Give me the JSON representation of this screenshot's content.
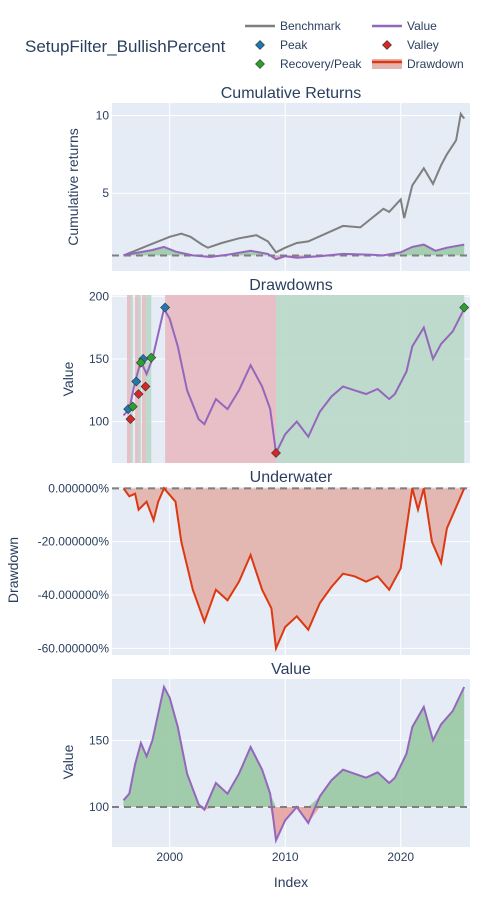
{
  "title": "SetupFilter_BullishPercent",
  "legend": [
    {
      "label": "Benchmark",
      "symbol": "line",
      "color": "#7f7f7f"
    },
    {
      "label": "Value",
      "symbol": "line",
      "color": "#9467bd"
    },
    {
      "label": "Peak",
      "symbol": "diamond",
      "color": "#1f77b4"
    },
    {
      "label": "Valley",
      "symbol": "diamond",
      "color": "#d62728"
    },
    {
      "label": "Recovery/Peak",
      "symbol": "diamond",
      "color": "#2ca02c"
    },
    {
      "label": "Drawdown",
      "symbol": "band",
      "color": "#dc3912"
    }
  ],
  "colors": {
    "plot_bg": "#e5ecf6",
    "grid": "#ffffff",
    "text": "#2a3f5f",
    "benchmark": "#7f7f7f",
    "value": "#9467bd",
    "peak": "#1f77b4",
    "valley": "#d62728",
    "recovery": "#2ca02c",
    "drawdown_line": "#dc3912",
    "drawdown_fill": "#e4b5ae",
    "active_dd_fill": "#e8b9c2",
    "recovery_fill": "#b8d8c8",
    "above_fill": "#98c9a3",
    "below_fill": "#e8a3a0",
    "baseline": "#7f7f7f"
  },
  "x_axis": {
    "label": "Index",
    "ticks": [
      2000,
      2010,
      2020
    ],
    "range": [
      1995,
      2026
    ]
  },
  "chart_data": [
    {
      "type": "line",
      "title": "Cumulative Returns",
      "ylabel": "Cumulative returns",
      "ylim": [
        0,
        10.8
      ],
      "yticks": [
        {
          "v": 5,
          "label": "5"
        },
        {
          "v": 10,
          "label": "10"
        }
      ],
      "baseline": 1,
      "series": [
        {
          "name": "Benchmark",
          "x": [
            1996.0,
            1997.0,
            1998.0,
            1999.0,
            2000.0,
            2001.0,
            2001.8,
            2002.8,
            2003.3,
            2004.5,
            2006.0,
            2007.5,
            2008.5,
            2009.2,
            2010.0,
            2011.0,
            2012.0,
            2013.5,
            2015.0,
            2016.5,
            2017.5,
            2018.5,
            2019.0,
            2020.0,
            2020.3,
            2021.0,
            2022.0,
            2022.8,
            2023.5,
            2024.0,
            2024.8,
            2025.2,
            2025.5
          ],
          "values": [
            1.0,
            1.3,
            1.6,
            1.9,
            2.2,
            2.4,
            2.2,
            1.7,
            1.5,
            1.8,
            2.1,
            2.3,
            1.9,
            1.2,
            1.5,
            1.8,
            1.9,
            2.4,
            2.9,
            2.8,
            3.4,
            4.0,
            3.8,
            4.6,
            3.4,
            5.5,
            6.6,
            5.6,
            6.8,
            7.5,
            8.4,
            10.1,
            9.8
          ]
        },
        {
          "name": "Value",
          "x": [
            1996.0,
            1997.0,
            1998.5,
            1999.5,
            2000.5,
            2002.0,
            2003.5,
            2005.0,
            2007.0,
            2008.5,
            2009.2,
            2010.0,
            2011.0,
            2013.0,
            2015.0,
            2017.5,
            2018.5,
            2020.0,
            2021.0,
            2022.0,
            2023.0,
            2024.0,
            2025.5
          ],
          "values": [
            1.0,
            1.15,
            1.35,
            1.55,
            1.25,
            1.0,
            0.9,
            1.05,
            1.3,
            1.1,
            0.75,
            0.95,
            0.85,
            0.95,
            1.1,
            1.05,
            1.0,
            1.2,
            1.55,
            1.7,
            1.3,
            1.5,
            1.7
          ]
        }
      ]
    },
    {
      "type": "line",
      "title": "Drawdowns",
      "ylabel": "Value",
      "ylim": [
        67,
        201
      ],
      "yticks": [
        {
          "v": 100,
          "label": "100"
        },
        {
          "v": 150,
          "label": "150"
        },
        {
          "v": 200,
          "label": "200"
        }
      ],
      "series": [
        {
          "name": "Value",
          "x": [
            1996.0,
            1996.5,
            1997.0,
            1997.5,
            1998.0,
            1998.5,
            1999.0,
            1999.5,
            2000.0,
            2000.7,
            2001.5,
            2002.5,
            2003.0,
            2004.0,
            2005.0,
            2006.0,
            2007.0,
            2008.0,
            2008.7,
            2009.2,
            2010.0,
            2011.0,
            2012.0,
            2013.0,
            2014.0,
            2015.0,
            2016.0,
            2017.0,
            2018.0,
            2019.0,
            2019.5,
            2020.5,
            2021.0,
            2022.0,
            2022.8,
            2023.5,
            2024.5,
            2025.5
          ],
          "values": [
            105,
            110,
            132,
            148,
            138,
            150,
            170,
            190,
            182,
            160,
            125,
            102,
            98,
            118,
            110,
            125,
            145,
            128,
            110,
            75,
            90,
            100,
            88,
            108,
            120,
            128,
            125,
            122,
            126,
            118,
            122,
            140,
            160,
            175,
            150,
            162,
            172,
            190
          ]
        }
      ],
      "markers": {
        "peaks": {
          "x": [
            1996.4,
            1997.1,
            1997.7,
            1999.6
          ],
          "values": [
            110,
            132,
            150,
            191
          ]
        },
        "valleys": {
          "x": [
            1996.6,
            1997.3,
            1997.9,
            2009.2
          ],
          "values": [
            102,
            122,
            128,
            75
          ]
        },
        "recoveries": {
          "x": [
            1996.8,
            1997.5,
            1998.4,
            2025.5
          ],
          "values": [
            112,
            147,
            151,
            191
          ]
        }
      },
      "drawdown_ranges": [
        {
          "start": 1996.3,
          "valley": 1996.6,
          "end": 1996.8
        },
        {
          "start": 1997.0,
          "valley": 1997.3,
          "end": 1997.5
        },
        {
          "start": 1997.6,
          "valley": 1997.9,
          "end": 1998.4
        },
        {
          "start": 1999.6,
          "valley": 2009.2,
          "end": 2025.5
        }
      ]
    },
    {
      "type": "area",
      "title": "Underwater",
      "ylabel": "Drawdown",
      "ylim": [
        -0.625,
        0.005
      ],
      "yticks": [
        {
          "v": 0,
          "label": "0.000000%"
        },
        {
          "v": -0.2,
          "label": "-20.000000%"
        },
        {
          "v": -0.4,
          "label": "-40.000000%"
        },
        {
          "v": -0.6,
          "label": "-60.000000%"
        }
      ],
      "baseline": 0,
      "series": [
        {
          "name": "Drawdown",
          "x": [
            1996.0,
            1996.5,
            1997.0,
            1997.3,
            1998.0,
            1998.6,
            1999.0,
            1999.5,
            2000.5,
            2001.0,
            2002.0,
            2003.0,
            2004.0,
            2005.0,
            2006.0,
            2007.0,
            2008.0,
            2008.8,
            2009.2,
            2010.0,
            2011.0,
            2012.0,
            2013.0,
            2014.0,
            2015.0,
            2016.0,
            2017.0,
            2018.0,
            2019.0,
            2020.0,
            2020.5,
            2021.0,
            2021.5,
            2022.0,
            2022.7,
            2023.5,
            2024.0,
            2025.0,
            2025.5
          ],
          "values": [
            0.0,
            -0.03,
            -0.02,
            -0.08,
            -0.05,
            -0.12,
            -0.05,
            0.0,
            -0.05,
            -0.2,
            -0.38,
            -0.5,
            -0.38,
            -0.42,
            -0.35,
            -0.25,
            -0.38,
            -0.45,
            -0.6,
            -0.52,
            -0.48,
            -0.53,
            -0.43,
            -0.37,
            -0.32,
            -0.33,
            -0.35,
            -0.33,
            -0.38,
            -0.3,
            -0.15,
            0.0,
            -0.08,
            0.0,
            -0.2,
            -0.28,
            -0.15,
            -0.05,
            0.0
          ]
        }
      ]
    },
    {
      "type": "area",
      "title": "Value",
      "ylabel": "Value",
      "ylim": [
        70,
        196
      ],
      "yticks": [
        {
          "v": 100,
          "label": "100"
        },
        {
          "v": 150,
          "label": "150"
        }
      ],
      "baseline": 100,
      "series": [
        {
          "name": "Value",
          "x": [
            1996.0,
            1996.5,
            1997.0,
            1997.5,
            1998.0,
            1998.5,
            1999.0,
            1999.5,
            2000.0,
            2000.7,
            2001.5,
            2002.5,
            2003.0,
            2004.0,
            2005.0,
            2006.0,
            2007.0,
            2008.0,
            2008.7,
            2009.2,
            2010.0,
            2011.0,
            2012.0,
            2013.0,
            2014.0,
            2015.0,
            2016.0,
            2017.0,
            2018.0,
            2019.0,
            2019.5,
            2020.5,
            2021.0,
            2022.0,
            2022.8,
            2023.5,
            2024.5,
            2025.5
          ],
          "values": [
            105,
            110,
            132,
            148,
            138,
            150,
            170,
            190,
            182,
            160,
            125,
            102,
            98,
            118,
            110,
            125,
            145,
            128,
            110,
            75,
            90,
            100,
            88,
            108,
            120,
            128,
            125,
            122,
            126,
            118,
            122,
            140,
            160,
            175,
            150,
            162,
            172,
            190
          ]
        }
      ]
    }
  ]
}
